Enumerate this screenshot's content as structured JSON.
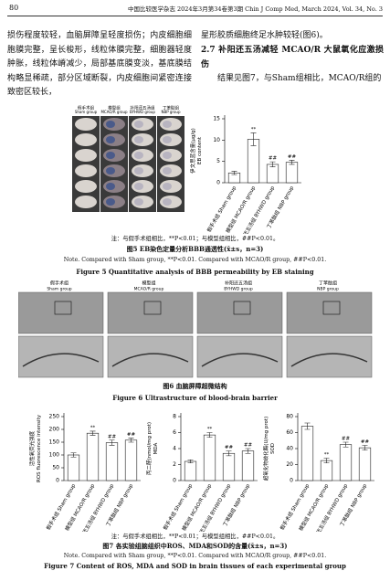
{
  "header": {
    "page": "80",
    "journal": "中国比较医学杂志 2024年3月第34卷第3期  Chin J Comp Med, March 2024, Vol. 34, No. 3"
  },
  "body": {
    "left": "损伤程度较轻，血脑屏障呈轻度损伤；内皮细胞细胞膜完整，呈长梭形，线粒体膜完整，细胞器轻度肿胀，线粒体嵴减少，局部基底膜变淡，基底膜结构略显稀疏，部分区域断裂，内皮细胞间紧密连接致密区较长，",
    "right_1": "星形胶质细胞终足水肿较轻(图6)。",
    "heading": "2.7  补阳还五汤减轻 MCAO/R 大鼠氧化应激损伤",
    "right_2": "结果见图7，与Sham组相比，MCAO/R组的"
  },
  "figure5": {
    "photo_labels": [
      {
        "cn": "假手术组",
        "en": "Sham group"
      },
      {
        "cn": "模型组",
        "en": "MCAO/R group"
      },
      {
        "cn": "补阳还五汤组",
        "en": "BYHWD group"
      },
      {
        "cn": "丁苯酞组",
        "en": "NBP group"
      }
    ],
    "note_cn": "注：与假手术组相比，**P<0.01；与模型组相比，##P<0.01。",
    "caption_cn": "图5  EB染色定量分析BBB通透性(x̄±s，n=3)",
    "note_en": "Note. Compared with Sham group, **P<0.01. Compared with MCAO/R group, ##P<0.01.",
    "caption_en": "Figure 5  Quantitative analysis of BBB permeability by EB staining"
  },
  "figure6": {
    "labels": [
      {
        "cn": "假手术组",
        "en": "Sham group"
      },
      {
        "cn": "模型组",
        "en": "MCAO/R group"
      },
      {
        "cn": "补阳还五汤组",
        "en": "BYHWD group"
      },
      {
        "cn": "丁苯酞组",
        "en": "NBP group"
      }
    ],
    "caption_cn": "图6  血脑屏障超微结构",
    "caption_en": "Figure 6  Ultrastructure of blood-brain barrier"
  },
  "figure7": {
    "note_cn": "注：与假手术组相比，**P<0.01；与模型组相比，##P<0.01。",
    "caption_cn": "图7  各实验组脑组织中ROS、MDA和SOD的含量(x̄±s，n=3)",
    "note_en": "Note. Compared with Sham group, **P<0.01. Compared with MCAO/R group, ##P<0.01.",
    "caption_en": "Figure 7  Content of ROS, MDA and SOD in brain tissues of each experimental group"
  },
  "chart_data": [
    {
      "type": "bar",
      "ylabel": [
        "伊文思蓝含量(μg/g)",
        "EB content"
      ],
      "categories": [
        "假手术组 Sham group",
        "模型组 MCAO/R group",
        "补阳还五汤组 BYHWD group",
        "丁苯酞组 NBP group"
      ],
      "values": [
        2.3,
        10.2,
        4.3,
        4.8
      ],
      "errors": [
        0.4,
        1.5,
        0.6,
        0.5
      ],
      "annotations": [
        null,
        "**",
        "##",
        "##"
      ],
      "color": "#ffffff",
      "ylim": [
        0,
        15
      ],
      "yticks": [
        0,
        5,
        10,
        15
      ]
    },
    {
      "type": "bar",
      "ylabel": [
        "活性氧荧光强度",
        "ROS fluorescence intensity"
      ],
      "categories": [
        "假手术组 Sham group",
        "模型组 MCAO/R group",
        "补阳还五汤组 BYHWD group",
        "丁苯酞组 NBP group"
      ],
      "values": [
        100,
        185,
        148,
        158
      ],
      "errors": [
        8,
        8,
        10,
        8
      ],
      "annotations": [
        null,
        "**",
        "##",
        "##"
      ],
      "color": "#ffffff",
      "ylim": [
        0,
        250
      ],
      "yticks": [
        0,
        50,
        100,
        150,
        200,
        250
      ]
    },
    {
      "type": "bar",
      "ylabel": [
        "丙二醛(nmol/mg prot)",
        "MDA"
      ],
      "categories": [
        "假手术组 Sham group",
        "模型组 MCAO/R group",
        "补阳还五汤组 BYHWD group",
        "丁苯酞组 NBP group"
      ],
      "values": [
        2.4,
        5.7,
        3.4,
        3.7
      ],
      "errors": [
        0.2,
        0.3,
        0.3,
        0.3
      ],
      "annotations": [
        null,
        "**",
        "##",
        "##"
      ],
      "color": "#ffffff",
      "ylim": [
        0,
        8
      ],
      "yticks": [
        0,
        2,
        4,
        6,
        8
      ]
    },
    {
      "type": "bar",
      "ylabel": [
        "超氧化物歧化酶(U/mg prot)",
        "SOD"
      ],
      "categories": [
        "假手术组 Sham group",
        "模型组 MCAO/R group",
        "补阳还五汤组 BYHWD group",
        "丁苯酞组 NBP group"
      ],
      "values": [
        68,
        25,
        45,
        41
      ],
      "errors": [
        4,
        3,
        3,
        3
      ],
      "annotations": [
        null,
        "**",
        "##",
        "##"
      ],
      "color": "#ffffff",
      "ylim": [
        0,
        80
      ],
      "yticks": [
        0,
        20,
        40,
        60,
        80
      ]
    }
  ]
}
